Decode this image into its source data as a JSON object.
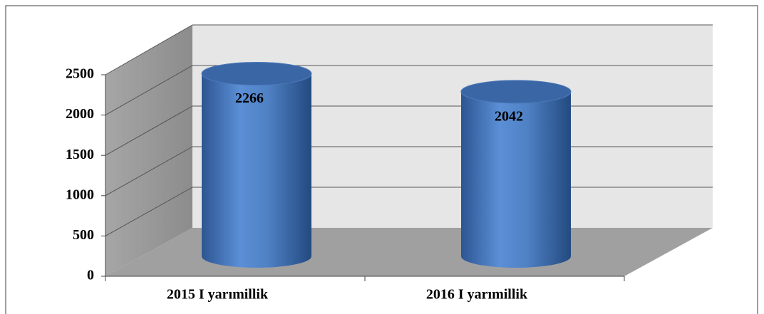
{
  "chart_data": {
    "type": "bar",
    "categories": [
      "2015 I yarımillik",
      "2016 I yarımillik"
    ],
    "values": [
      2266,
      2042
    ],
    "color": "#4f81bd",
    "ylim": [
      0,
      2500
    ],
    "yticks": [
      0,
      500,
      1000,
      1500,
      2000,
      2500
    ],
    "grid": true
  }
}
